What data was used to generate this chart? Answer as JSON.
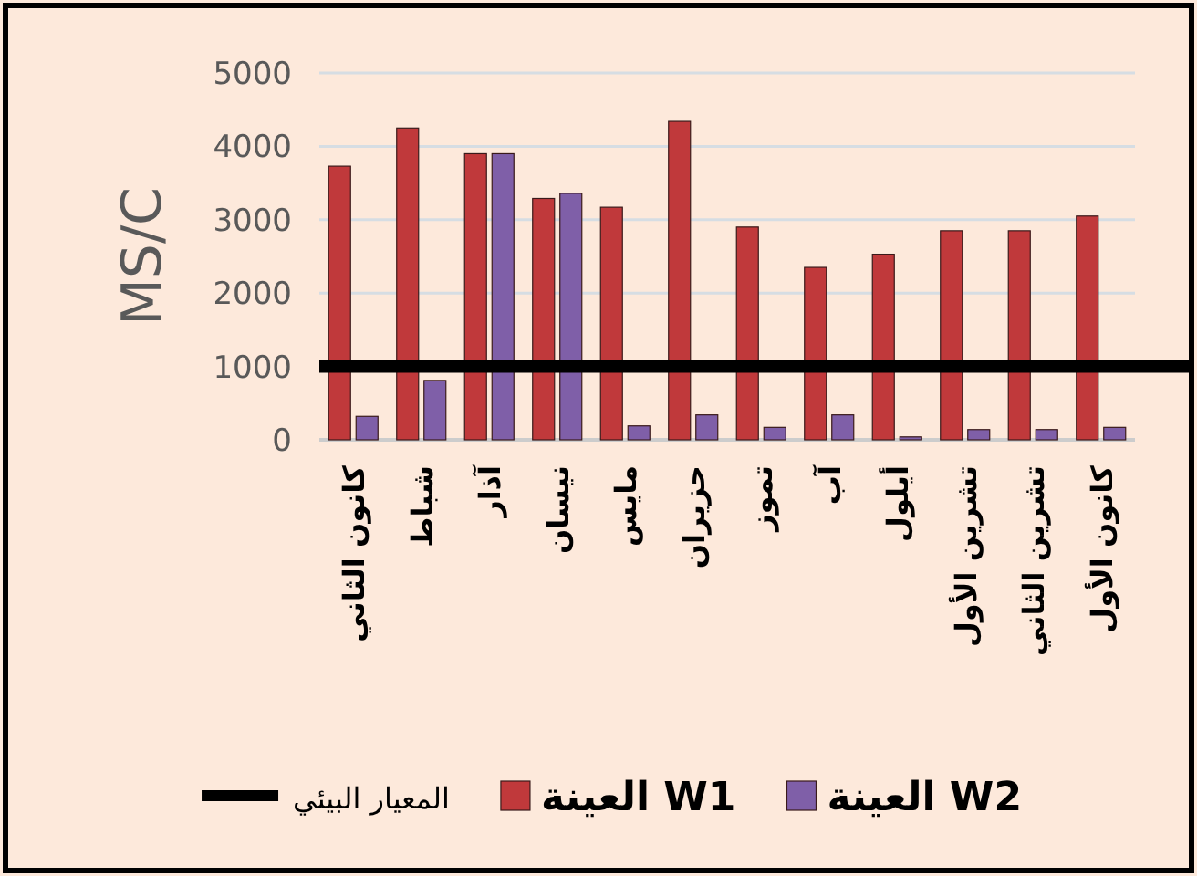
{
  "chart_data": {
    "type": "bar",
    "ylabel": "MS/C",
    "categories": [
      "كانون الثاني",
      "شباط",
      "آذار",
      "نيسان",
      "مايس",
      "حزيران",
      "تموز",
      "آب",
      "أيلول",
      "تشرين الأول",
      "تشرين الثاني",
      "كانون الأول"
    ],
    "series": [
      {
        "name": "العينة W1",
        "color": "#c0393b",
        "values": [
          3730,
          4250,
          3900,
          3290,
          3170,
          4340,
          2900,
          2350,
          2530,
          2850,
          2850,
          3050
        ]
      },
      {
        "name": "العينة W2",
        "color": "#7f5fa8",
        "values": [
          320,
          810,
          3900,
          3360,
          190,
          340,
          170,
          340,
          40,
          140,
          140,
          170
        ]
      }
    ],
    "ylim": [
      0,
      5000
    ],
    "yticks": [
      0,
      1000,
      2000,
      3000,
      4000,
      5000
    ],
    "ref_lines": [
      {
        "axis": "y",
        "value": 1000,
        "label": "المعيار البيئي",
        "color": "#000000"
      }
    ],
    "grid": "y",
    "legend": "bottom"
  }
}
